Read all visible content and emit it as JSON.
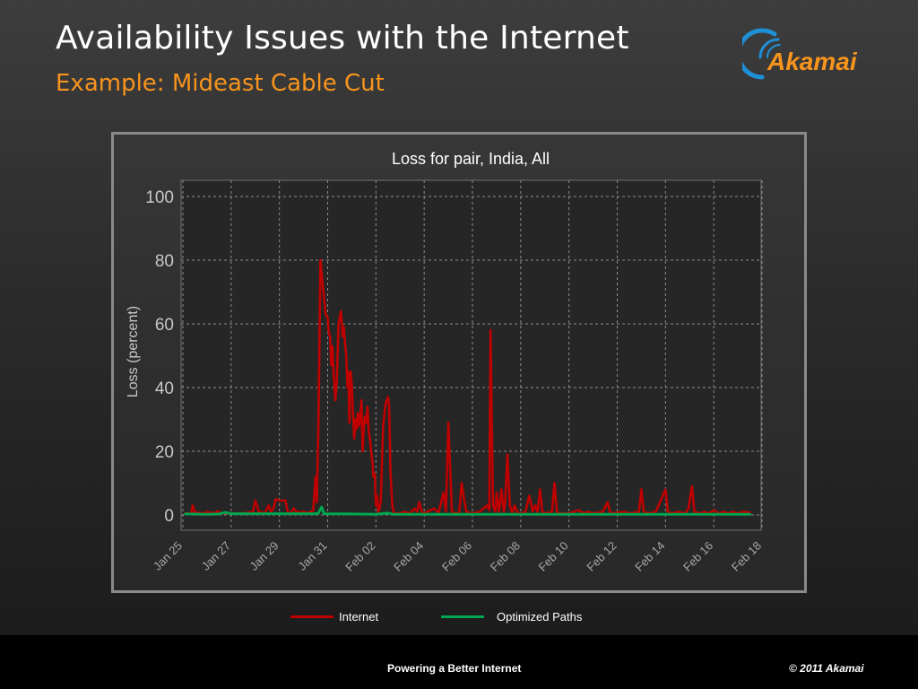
{
  "slide": {
    "title": "Availability Issues with the Internet",
    "subtitle": "Example: Mideast Cable Cut",
    "logo_text": "Akamai",
    "footer_tagline": "Powering a Better Internet",
    "footer_copyright": "© 2011 Akamai"
  },
  "colors": {
    "title": "#ffffff",
    "subtitle": "#f7941d",
    "brand_orange": "#f7941d",
    "brand_blue": "#1e90d6",
    "internet_series": "#c00000",
    "optimized_series": "#00a651"
  },
  "chart_data": {
    "type": "line",
    "title": "Loss for pair, India, All",
    "xlabel": "",
    "ylabel": "Loss (percent)",
    "ylim": [
      0,
      100
    ],
    "yticks": [
      0,
      20,
      40,
      60,
      80,
      100
    ],
    "xlim_days": [
      0,
      24
    ],
    "xticks": [
      {
        "label": "Jan 25",
        "day": 0
      },
      {
        "label": "Jan 27",
        "day": 2
      },
      {
        "label": "Jan 29",
        "day": 4
      },
      {
        "label": "Jan 31",
        "day": 6
      },
      {
        "label": "Feb 02",
        "day": 8
      },
      {
        "label": "Feb 04",
        "day": 10
      },
      {
        "label": "Feb 06",
        "day": 12
      },
      {
        "label": "Feb 08",
        "day": 14
      },
      {
        "label": "Feb 10",
        "day": 16
      },
      {
        "label": "Feb 12",
        "day": 18
      },
      {
        "label": "Feb 14",
        "day": 20
      },
      {
        "label": "Feb 16",
        "day": 22
      },
      {
        "label": "Feb 18",
        "day": 24
      }
    ],
    "grid": true,
    "legend_placement": "bottom",
    "series": [
      {
        "name": "Internet",
        "color": "#c00000",
        "points": [
          [
            0.1,
            0.5
          ],
          [
            0.35,
            0.5
          ],
          [
            0.4,
            3
          ],
          [
            0.5,
            0.8
          ],
          [
            0.9,
            0.5
          ],
          [
            1.0,
            1
          ],
          [
            1.3,
            0.5
          ],
          [
            1.45,
            1.2
          ],
          [
            1.6,
            0.5
          ],
          [
            2.5,
            0.5
          ],
          [
            2.9,
            1
          ],
          [
            3.0,
            4.5
          ],
          [
            3.15,
            1
          ],
          [
            3.4,
            0.6
          ],
          [
            3.55,
            3
          ],
          [
            3.65,
            1
          ],
          [
            3.75,
            2
          ],
          [
            3.85,
            5
          ],
          [
            4.0,
            4.5
          ],
          [
            4.25,
            4.5
          ],
          [
            4.35,
            0.8
          ],
          [
            4.5,
            0.8
          ],
          [
            4.6,
            2
          ],
          [
            4.75,
            0.8
          ],
          [
            5.0,
            1
          ],
          [
            5.2,
            0.6
          ],
          [
            5.4,
            1.5
          ],
          [
            5.5,
            12
          ],
          [
            5.55,
            4
          ],
          [
            5.62,
            30
          ],
          [
            5.7,
            80
          ],
          [
            5.75,
            76
          ],
          [
            5.85,
            68
          ],
          [
            5.92,
            63
          ],
          [
            6.0,
            62
          ],
          [
            6.05,
            57
          ],
          [
            6.1,
            56
          ],
          [
            6.15,
            47
          ],
          [
            6.2,
            53
          ],
          [
            6.25,
            44
          ],
          [
            6.32,
            36
          ],
          [
            6.38,
            42
          ],
          [
            6.45,
            60
          ],
          [
            6.55,
            64
          ],
          [
            6.62,
            56
          ],
          [
            6.67,
            59
          ],
          [
            6.72,
            54
          ],
          [
            6.77,
            50
          ],
          [
            6.82,
            40
          ],
          [
            6.86,
            45
          ],
          [
            6.9,
            29
          ],
          [
            6.95,
            45
          ],
          [
            7.0,
            41
          ],
          [
            7.05,
            32
          ],
          [
            7.1,
            24
          ],
          [
            7.15,
            30
          ],
          [
            7.2,
            27
          ],
          [
            7.25,
            32
          ],
          [
            7.3,
            28
          ],
          [
            7.35,
            31
          ],
          [
            7.4,
            36
          ],
          [
            7.45,
            20
          ],
          [
            7.5,
            28
          ],
          [
            7.55,
            31
          ],
          [
            7.6,
            29
          ],
          [
            7.65,
            34
          ],
          [
            7.7,
            26
          ],
          [
            7.75,
            24
          ],
          [
            7.8,
            20
          ],
          [
            7.85,
            17
          ],
          [
            7.9,
            12
          ],
          [
            7.95,
            13
          ],
          [
            8.0,
            3
          ],
          [
            8.05,
            6
          ],
          [
            8.1,
            0.8
          ],
          [
            8.15,
            2
          ],
          [
            8.2,
            4
          ],
          [
            8.3,
            28
          ],
          [
            8.4,
            35
          ],
          [
            8.5,
            37
          ],
          [
            8.55,
            34
          ],
          [
            8.6,
            14
          ],
          [
            8.68,
            3
          ],
          [
            8.75,
            0.5
          ],
          [
            9.0,
            0.5
          ],
          [
            9.2,
            1
          ],
          [
            9.4,
            0.5
          ],
          [
            9.6,
            2
          ],
          [
            9.7,
            1
          ],
          [
            9.8,
            4
          ],
          [
            9.9,
            1
          ],
          [
            10.0,
            0.5
          ],
          [
            10.4,
            2
          ],
          [
            10.6,
            0.8
          ],
          [
            10.8,
            7
          ],
          [
            10.9,
            1
          ],
          [
            11.0,
            29
          ],
          [
            11.15,
            1
          ],
          [
            11.3,
            0.5
          ],
          [
            11.45,
            0.6
          ],
          [
            11.55,
            10
          ],
          [
            11.65,
            5
          ],
          [
            11.75,
            1
          ],
          [
            12.0,
            0.5
          ],
          [
            12.3,
            1
          ],
          [
            12.6,
            3
          ],
          [
            12.7,
            1.5
          ],
          [
            12.75,
            58
          ],
          [
            12.85,
            3
          ],
          [
            12.95,
            1
          ],
          [
            13.0,
            7
          ],
          [
            13.1,
            1
          ],
          [
            13.2,
            8
          ],
          [
            13.3,
            1
          ],
          [
            13.35,
            3
          ],
          [
            13.45,
            19
          ],
          [
            13.55,
            3
          ],
          [
            13.65,
            0.6
          ],
          [
            13.75,
            3
          ],
          [
            13.85,
            1
          ],
          [
            14.0,
            0.5
          ],
          [
            14.2,
            1
          ],
          [
            14.35,
            6
          ],
          [
            14.45,
            3
          ],
          [
            14.5,
            1
          ],
          [
            14.6,
            3
          ],
          [
            14.7,
            1
          ],
          [
            14.8,
            8
          ],
          [
            14.9,
            1
          ],
          [
            15.0,
            0.5
          ],
          [
            15.3,
            1
          ],
          [
            15.4,
            10
          ],
          [
            15.5,
            1
          ],
          [
            15.6,
            0.5
          ],
          [
            16.0,
            0.5
          ],
          [
            16.4,
            1.5
          ],
          [
            16.6,
            0.6
          ],
          [
            16.8,
            1
          ],
          [
            17.0,
            0.5
          ],
          [
            17.4,
            1
          ],
          [
            17.6,
            4
          ],
          [
            17.7,
            1
          ],
          [
            17.8,
            0.5
          ],
          [
            18.0,
            0.8
          ],
          [
            18.3,
            1
          ],
          [
            18.5,
            0.5
          ],
          [
            18.9,
            1
          ],
          [
            19.0,
            8
          ],
          [
            19.1,
            1
          ],
          [
            19.3,
            0.5
          ],
          [
            19.6,
            1
          ],
          [
            20.0,
            8
          ],
          [
            20.1,
            1
          ],
          [
            20.3,
            0.5
          ],
          [
            20.5,
            1
          ],
          [
            20.8,
            0.5
          ],
          [
            20.95,
            2
          ],
          [
            21.1,
            9
          ],
          [
            21.2,
            1
          ],
          [
            21.4,
            0.5
          ],
          [
            21.6,
            1
          ],
          [
            21.8,
            0.5
          ],
          [
            22.0,
            1.5
          ],
          [
            22.2,
            0.5
          ],
          [
            22.4,
            1
          ],
          [
            22.6,
            0.5
          ],
          [
            22.8,
            1
          ],
          [
            23.0,
            0.5
          ],
          [
            23.2,
            1
          ],
          [
            23.5,
            0.8
          ]
        ]
      },
      {
        "name": "Optimized Paths",
        "color": "#00a651",
        "points": [
          [
            0.1,
            0.3
          ],
          [
            1.0,
            0.2
          ],
          [
            1.5,
            0.3
          ],
          [
            1.75,
            0.8
          ],
          [
            2.0,
            0.4
          ],
          [
            4.0,
            0.4
          ],
          [
            5.6,
            0.4
          ],
          [
            5.75,
            2.5
          ],
          [
            5.85,
            0.4
          ],
          [
            7.0,
            0.3
          ],
          [
            8.0,
            0.2
          ],
          [
            8.5,
            0.6
          ],
          [
            8.7,
            0.2
          ],
          [
            10.0,
            0.2
          ],
          [
            12.0,
            0.2
          ],
          [
            14.0,
            0.2
          ],
          [
            16.0,
            0.2
          ],
          [
            18.0,
            0.2
          ],
          [
            20.0,
            0.2
          ],
          [
            22.0,
            0.2
          ],
          [
            23.5,
            0.2
          ]
        ]
      }
    ]
  }
}
